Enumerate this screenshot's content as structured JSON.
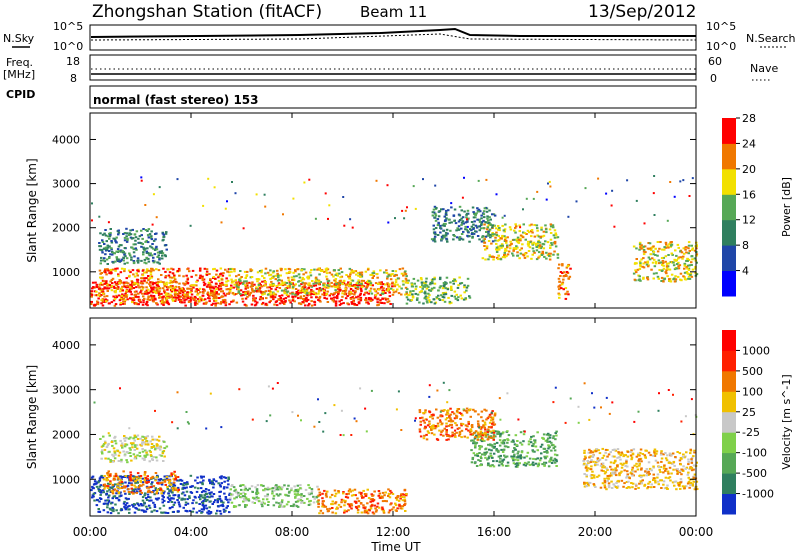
{
  "header": {
    "station": "Zhongshan Station (fitACF)",
    "beam": "Beam 11",
    "date": "13/Sep/2012"
  },
  "strips": {
    "nsky_label": "N.Sky",
    "nsky_ticks": [
      "10^5",
      "10^0"
    ],
    "nsearch_label": "N.Search",
    "nsearch_ticks": [
      "10^5",
      "10^0"
    ],
    "freq_label": "Freq.",
    "freq_unit": "[MHz]",
    "freq_ticks": [
      "18",
      "8"
    ],
    "nave_label": "Nave",
    "nave_ticks": [
      "60",
      "0"
    ],
    "cpid_label": "CPID",
    "cpid_text": "normal (fast stereo) 153"
  },
  "chart_data": [
    {
      "type": "heatmap",
      "name": "power",
      "ylabel": "Slant Range [km]",
      "ylim": [
        180,
        4600
      ],
      "yticks": [
        "1000",
        "2000",
        "3000",
        "4000"
      ],
      "ytick_values": [
        1000,
        2000,
        3000,
        4000
      ],
      "xlim": [
        0,
        24
      ],
      "colorbar": {
        "label": "Power [dB]",
        "ticks": [
          "4",
          "8",
          "12",
          "16",
          "20",
          "24",
          "28"
        ],
        "colors": [
          "#0000ff",
          "#1f46a8",
          "#2f7f5f",
          "#56a856",
          "#f2e000",
          "#f07800",
          "#ff0000"
        ]
      },
      "regions": [
        {
          "t": [
            0.0,
            12.0
          ],
          "r": [
            250,
            800
          ],
          "level": 6
        },
        {
          "t": [
            0.2,
            5.5
          ],
          "r": [
            300,
            1100
          ],
          "level": 5
        },
        {
          "t": [
            5.5,
            12.5
          ],
          "r": [
            500,
            1100
          ],
          "level": 4
        },
        {
          "t": [
            0.3,
            3.0
          ],
          "r": [
            1200,
            2000
          ],
          "level": 2
        },
        {
          "t": [
            12.5,
            15.0
          ],
          "r": [
            300,
            900
          ],
          "level": 3
        },
        {
          "t": [
            15.5,
            18.5
          ],
          "r": [
            1300,
            2100
          ],
          "level": 4
        },
        {
          "t": [
            18.5,
            19.0
          ],
          "r": [
            400,
            1200
          ],
          "level": 5
        },
        {
          "t": [
            21.5,
            24.0
          ],
          "r": [
            800,
            1700
          ],
          "level": 4
        },
        {
          "t": [
            13.5,
            16.0
          ],
          "r": [
            1700,
            2500
          ],
          "level": 2
        }
      ]
    },
    {
      "type": "heatmap",
      "name": "velocity",
      "ylabel": "Slant Range [km]",
      "ylim": [
        180,
        4600
      ],
      "yticks": [
        "1000",
        "2000",
        "3000",
        "4000"
      ],
      "ytick_values": [
        1000,
        2000,
        3000,
        4000
      ],
      "xlim": [
        0,
        24
      ],
      "colorbar": {
        "label": "Velocity [m s^-1]",
        "ticks": [
          "1000",
          "500",
          "100",
          "25",
          "-25",
          "-100",
          "-500",
          "-1000"
        ],
        "colors": [
          "#1030c8",
          "#2f7f5f",
          "#56a856",
          "#7fd04a",
          "#c8c8c8",
          "#f0c000",
          "#f07800",
          "#ff2000",
          "#ff0000"
        ]
      },
      "regions": [
        {
          "t": [
            0.0,
            5.5
          ],
          "r": [
            250,
            1100
          ],
          "level": 0
        },
        {
          "t": [
            0.5,
            3.5
          ],
          "r": [
            700,
            1200
          ],
          "level": 6
        },
        {
          "t": [
            5.5,
            9.0
          ],
          "r": [
            400,
            900
          ],
          "level": 3
        },
        {
          "t": [
            9.0,
            12.5
          ],
          "r": [
            250,
            800
          ],
          "level": 6
        },
        {
          "t": [
            0.3,
            3.0
          ],
          "r": [
            1400,
            2000
          ],
          "level": 4
        },
        {
          "t": [
            15.0,
            18.5
          ],
          "r": [
            1300,
            2100
          ],
          "level": 2
        },
        {
          "t": [
            19.5,
            24.0
          ],
          "r": [
            800,
            1700
          ],
          "level": 5
        },
        {
          "t": [
            13.0,
            16.0
          ],
          "r": [
            1900,
            2600
          ],
          "level": 6
        }
      ]
    }
  ],
  "xaxis": {
    "label": "Time UT",
    "ticks": [
      "00:00",
      "04:00",
      "08:00",
      "12:00",
      "16:00",
      "20:00",
      "00:00"
    ],
    "tick_hours": [
      0,
      4,
      8,
      12,
      16,
      20,
      24
    ]
  }
}
